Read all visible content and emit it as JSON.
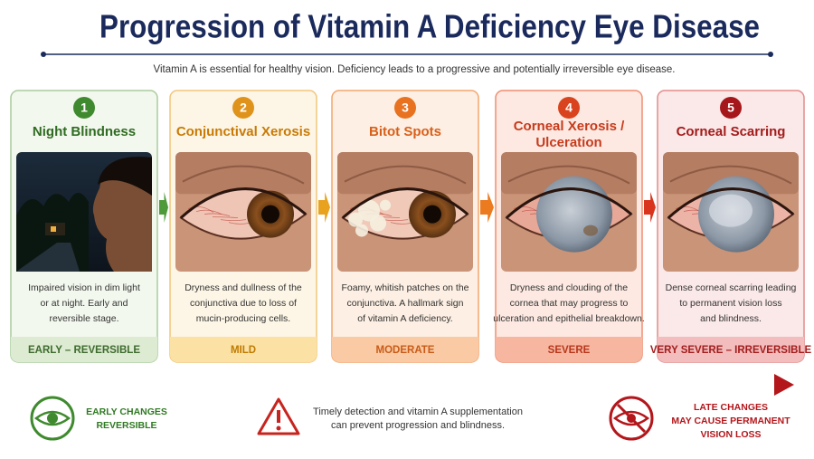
{
  "header": {
    "title": "Progression of Vitamin A Deficiency Eye Disease",
    "subtitle": "Vitamin A is essential for healthy vision. Deficiency leads to a progressive and potentially irreversible eye disease."
  },
  "stages": [
    {
      "number": 1,
      "title": [
        "Night Blindness"
      ],
      "description": [
        "Impaired vision in dim light",
        "or at night. Early and",
        "reversible stage."
      ],
      "severity": "EARLY – REVERSIBLE"
    },
    {
      "number": 2,
      "title": [
        "Conjunctival Xerosis"
      ],
      "description": [
        "Dryness and dullness of the",
        "conjunctiva due to loss of",
        "mucin-producing cells."
      ],
      "severity": "MILD"
    },
    {
      "number": 3,
      "title": [
        "Bitot Spots"
      ],
      "description": [
        "Foamy, whitish patches on the",
        "conjunctiva. A hallmark sign",
        "of vitamin A deficiency."
      ],
      "severity": "MODERATE"
    },
    {
      "number": 4,
      "title": [
        "Corneal Xerosis /",
        "Ulceration"
      ],
      "description": [
        "Dryness and clouding of the",
        "cornea that may progress to",
        "ulceration and epithelial breakdown."
      ],
      "severity": "SEVERE"
    },
    {
      "number": 5,
      "title": [
        "Corneal Scarring"
      ],
      "description": [
        "Dense corneal scarring leading",
        "to permanent vision loss",
        "and blindness."
      ],
      "severity": "VERY SEVERE – IRREVERSIBLE"
    }
  ],
  "footer": {
    "left": [
      "EARLY CHANGES",
      "REVERSIBLE"
    ],
    "center": [
      "Timely detection and vitamin A supplementation",
      "can prevent progression and blindness."
    ],
    "right": [
      "LATE CHANGES",
      "MAY CAUSE PERMANENT",
      "VISION LOSS"
    ]
  }
}
